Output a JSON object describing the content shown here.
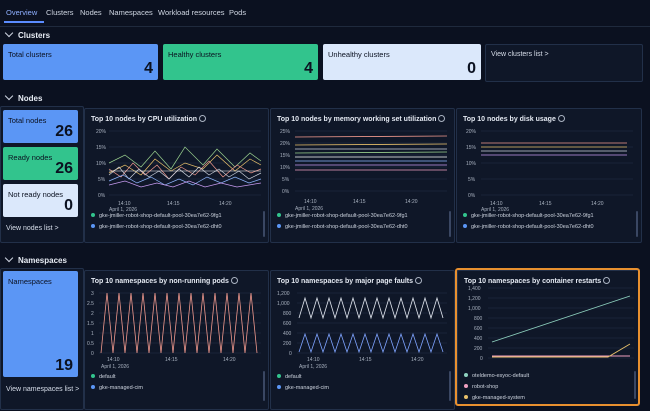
{
  "tabs": [
    "Overview",
    "Clusters",
    "Nodes",
    "Namespaces",
    "Workload resources",
    "Pods"
  ],
  "sections": {
    "clusters": {
      "title": "Clusters",
      "total_label": "Total clusters",
      "total_value": "4",
      "healthy_label": "Healthy clusters",
      "healthy_value": "4",
      "unhealthy_label": "Unhealthy clusters",
      "unhealthy_value": "0",
      "view_link": "View clusters list >"
    },
    "nodes": {
      "title": "Nodes",
      "total_label": "Total nodes",
      "total_value": "26",
      "ready_label": "Ready nodes",
      "ready_value": "26",
      "notready_label": "Not ready nodes",
      "notready_value": "0",
      "view_link": "View nodes list >",
      "cpu_title": "Top 10 nodes by CPU utilization",
      "mem_title": "Top 10 nodes by memory working set utilization",
      "disk_title": "Top 10 nodes by disk usage",
      "date_label": "April 1, 2026",
      "legend": [
        "gke-jmiller-robot-shop-default-pool-30ea7e62-9fg1",
        "gke-jmiller-robot-shop-default-pool-30ea7e62-dht0"
      ]
    },
    "namespaces": {
      "title": "Namespaces",
      "total_label": "Namespaces",
      "total_value": "19",
      "view_link": "View namespaces list >",
      "nonrunning_title": "Top 10 namespaces by non-running pods",
      "faults_title": "Top 10 namespaces by major page faults",
      "restarts_title": "Top 10 namespaces by container restarts",
      "date_label": "April 1, 2026",
      "legend_left": [
        "default",
        "gke-managed-cim"
      ],
      "legend_right": [
        "oteldemo-esyoc-default",
        "robot-shop",
        "gke-managed-system"
      ]
    }
  },
  "axes": {
    "pct_ticks": [
      "25%",
      "20%",
      "15%",
      "10%",
      "5%",
      "0%"
    ],
    "cpu_ticks": [
      "20%",
      "15%",
      "10%",
      "5%",
      "0%"
    ],
    "disk_ticks": [
      "20%",
      "15%",
      "10%",
      "5%",
      "0%"
    ],
    "time_ticks": [
      "14:10",
      "14:15",
      "14:20"
    ],
    "pods_ticks": [
      "3",
      "2.5",
      "2",
      "1.5",
      "1",
      "0.5",
      "0"
    ],
    "faults_ticks": [
      "1,200",
      "1,000",
      "800",
      "600",
      "400",
      "200",
      "0"
    ],
    "restarts_ticks": [
      "1,400",
      "1,200",
      "1,000",
      "800",
      "600",
      "400",
      "200",
      "0"
    ]
  },
  "colors": {
    "accent": "#5b96f5",
    "healthy": "#32c48d",
    "highlight": "#e8902f"
  }
}
